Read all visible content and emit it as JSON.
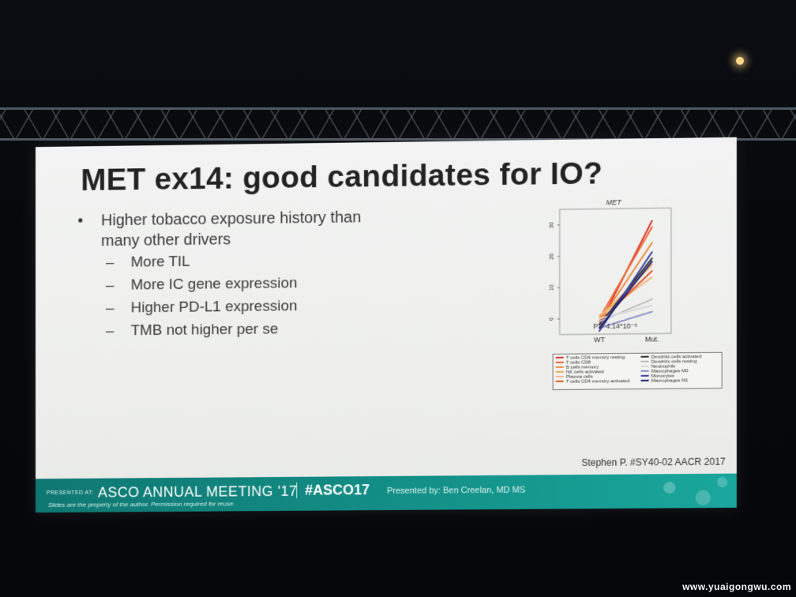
{
  "slide": {
    "title": "MET ex14: good candidates for IO?",
    "bullet_main": "Higher tobacco exposure history than many other drivers",
    "bullet_symbol": "•",
    "sub_items": [
      "More TIL",
      "More IC gene expression",
      "Higher PD-L1 expression",
      "TMB not higher per se"
    ],
    "citation": "Stephen P. #SY40-02 AACR 2017"
  },
  "footer": {
    "presented_at": "PRESENTED AT:",
    "meeting": "ASCO ANNUAL MEETING '17",
    "hashtag": "#ASCO17",
    "presenter": "Presented by: Ben Creelan, MD MS",
    "disclaimer": "Slides are the property of the author. Permission required for reuse."
  },
  "watermark": "www.yuaigongwu.com",
  "chart_data": {
    "type": "line",
    "title": "MET",
    "categories": [
      "WT",
      "Mut."
    ],
    "y_ticks": [
      "0",
      "10",
      "20",
      "30"
    ],
    "ylim": [
      -5,
      35
    ],
    "annotation": "P = 4.14*10⁻⁶",
    "series": [
      {
        "name": "T cells CD4 memory resting",
        "color": "#e0352b",
        "values": [
          -2,
          31
        ]
      },
      {
        "name": "T cells CD8",
        "color": "#ef6a2e",
        "values": [
          0,
          29
        ]
      },
      {
        "name": "B cells memory",
        "color": "#f08a3c",
        "values": [
          -1,
          24
        ]
      },
      {
        "name": "NK cells activated",
        "color": "#f4a45c",
        "values": [
          0,
          17
        ]
      },
      {
        "name": "Plasma cells",
        "color": "#f6b87d",
        "values": [
          1,
          13
        ]
      },
      {
        "name": "T cells CD4 memory activated",
        "color": "#e45a2a",
        "values": [
          -1,
          15
        ]
      },
      {
        "name": "Dendritic cells activated",
        "color": "#333333",
        "values": [
          -2,
          19
        ]
      },
      {
        "name": "Dendritic cells resting",
        "color": "#bbbbbb",
        "values": [
          -1,
          6
        ]
      },
      {
        "name": "Neutrophils",
        "color": "#d9d9d9",
        "values": [
          0,
          4
        ]
      },
      {
        "name": "Macrophages M0",
        "color": "#8a8fc4",
        "values": [
          -3,
          2
        ]
      },
      {
        "name": "Monocytes",
        "color": "#3b3fa0",
        "values": [
          -4,
          21
        ]
      },
      {
        "name": "Macrophages M1",
        "color": "#1c1f6e",
        "values": [
          -3,
          18
        ]
      }
    ]
  }
}
